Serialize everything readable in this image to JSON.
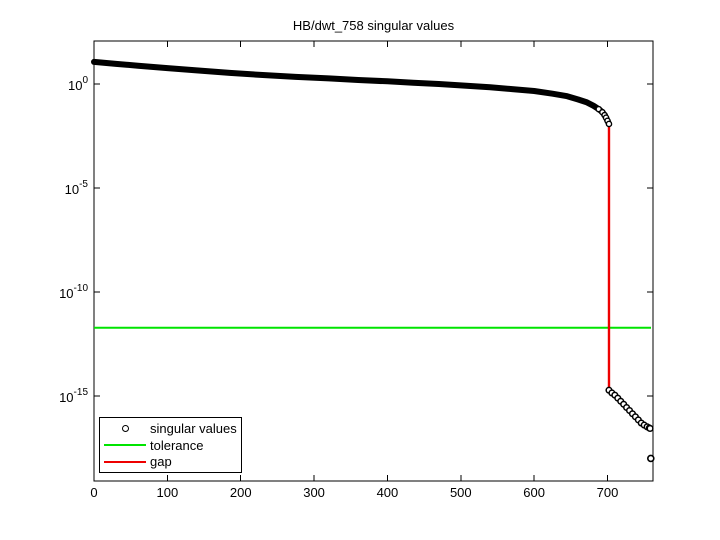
{
  "figure": {
    "title": "HB/dwt_758 singular values",
    "background_color": "#ffffff",
    "axis_color": "#000000"
  },
  "legend": {
    "items": [
      {
        "label": "singular values",
        "glyph": "circle-marker",
        "color": "#000000"
      },
      {
        "label": "tolerance",
        "glyph": "line",
        "color": "#00e400"
      },
      {
        "label": "gap",
        "glyph": "line",
        "color": "#ee0000"
      }
    ]
  },
  "chart_data": {
    "type": "line",
    "title": "HB/dwt_758 singular values",
    "xlabel": "",
    "ylabel": "",
    "yscale": "log",
    "xlim": [
      0,
      762
    ],
    "ylim": [
      1e-19,
      100.0
    ],
    "grid": false,
    "legend_position": "lower-left",
    "x_ticks": [
      0,
      100,
      200,
      300,
      400,
      500,
      600,
      700
    ],
    "y_tick_exponents": [
      "0",
      "-5",
      "-10",
      "-15"
    ],
    "y_tick_base": "10",
    "series": [
      {
        "name": "singular values",
        "color": "#000000",
        "marker": "o",
        "points": [
          [
            0,
            11.5
          ],
          [
            30,
            9.3
          ],
          [
            60,
            7.6
          ],
          [
            100,
            5.8
          ],
          [
            140,
            4.5
          ],
          [
            185,
            3.4
          ],
          [
            230,
            2.7
          ],
          [
            275,
            2.2
          ],
          [
            320,
            1.85
          ],
          [
            360,
            1.55
          ],
          [
            400,
            1.35
          ],
          [
            435,
            1.15
          ],
          [
            470,
            1.0
          ],
          [
            505,
            0.84
          ],
          [
            540,
            0.7
          ],
          [
            570,
            0.57
          ],
          [
            600,
            0.46
          ],
          [
            625,
            0.34
          ],
          [
            645,
            0.26
          ],
          [
            660,
            0.18
          ],
          [
            672,
            0.13
          ],
          [
            681,
            0.09
          ],
          [
            688,
            0.062
          ],
          [
            693,
            0.044
          ],
          [
            696,
            0.032
          ],
          [
            698,
            0.024
          ],
          [
            700,
            0.017
          ],
          [
            702,
            0.012
          ]
        ],
        "tail_points": [
          [
            702,
            1.9e-15
          ],
          [
            706,
            1.4e-15
          ],
          [
            710,
            1.1e-15
          ],
          [
            714,
            7.9e-16
          ],
          [
            718,
            5.6e-16
          ],
          [
            722,
            4e-16
          ],
          [
            726,
            2.8e-16
          ],
          [
            730,
            2e-16
          ],
          [
            734,
            1.4e-16
          ],
          [
            738,
            1e-16
          ],
          [
            742,
            7.1e-17
          ],
          [
            746,
            5e-17
          ],
          [
            750,
            4e-17
          ],
          [
            754,
            3.3e-17
          ],
          [
            757,
            2.9e-17
          ],
          [
            758,
            2.75e-17
          ]
        ],
        "outlier_point": [
          759,
          1e-18
        ]
      },
      {
        "name": "tolerance",
        "type": "hline",
        "color": "#00e400",
        "value": 1.9e-12
      },
      {
        "name": "gap",
        "type": "vline",
        "color": "#ee0000",
        "x": 702,
        "from": 0.012,
        "to": 2.3e-15
      }
    ]
  }
}
